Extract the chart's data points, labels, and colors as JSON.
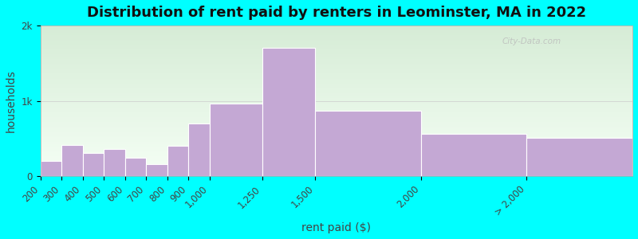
{
  "title": "Distribution of rent paid by renters in Leominster, MA in 2022",
  "xlabel": "rent paid ($)",
  "ylabel": "households",
  "background_color": "#00FFFF",
  "bar_color": "#c4a8d4",
  "bar_edge_color": "#ffffff",
  "bin_lefts": [
    200,
    300,
    400,
    500,
    600,
    700,
    800,
    900,
    1000,
    1250,
    1500,
    2000,
    2500
  ],
  "bin_rights": [
    300,
    400,
    500,
    600,
    700,
    800,
    900,
    1000,
    1250,
    1500,
    2000,
    2500,
    3000
  ],
  "values": [
    200,
    420,
    310,
    360,
    250,
    160,
    410,
    700,
    960,
    1700,
    870,
    560,
    510
  ],
  "xtick_positions": [
    200,
    300,
    400,
    500,
    600,
    700,
    800,
    900,
    1000,
    1250,
    1500,
    2000,
    2500
  ],
  "xtick_labels": [
    "200",
    "300",
    "400",
    "500",
    "600",
    "700",
    "800",
    "900",
    "1,000",
    "1,250",
    "1,500",
    "2,000",
    "> 2,000"
  ],
  "ylim": [
    0,
    2000
  ],
  "xlim": [
    200,
    3000
  ],
  "ytick_values": [
    0,
    1000,
    2000
  ],
  "ytick_labels": [
    "0",
    "1k",
    "2k"
  ],
  "plot_bg_top": "#d6ecd6",
  "plot_bg_bottom": "#f5fff5",
  "gridline_color": "#cccccc",
  "title_fontsize": 13,
  "axis_label_fontsize": 10,
  "tick_fontsize": 8.5,
  "watermark": "City-Data.com"
}
